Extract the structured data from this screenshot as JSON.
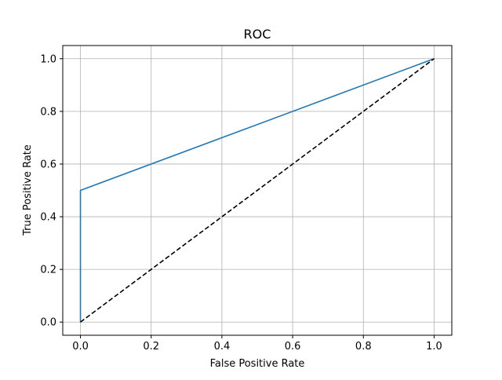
{
  "chart_data": {
    "type": "line",
    "title": "ROC",
    "xlabel": "False Positive Rate",
    "ylabel": "True Positive Rate",
    "xlim": [
      -0.05,
      1.05
    ],
    "ylim": [
      -0.05,
      1.05
    ],
    "xticks": [
      0.0,
      0.2,
      0.4,
      0.6,
      0.8,
      1.0
    ],
    "yticks": [
      0.0,
      0.2,
      0.4,
      0.6,
      0.8,
      1.0
    ],
    "xtick_labels": [
      "0.0",
      "0.2",
      "0.4",
      "0.6",
      "0.8",
      "1.0"
    ],
    "ytick_labels": [
      "0.0",
      "0.2",
      "0.4",
      "0.6",
      "0.8",
      "1.0"
    ],
    "grid": true,
    "series": [
      {
        "x": [
          0.0,
          0.0,
          1.0
        ],
        "y": [
          0.0,
          0.5,
          1.0
        ],
        "color": "#1f77b4",
        "style": "solid"
      },
      {
        "x": [
          0.0,
          1.0
        ],
        "y": [
          0.0,
          1.0
        ],
        "color": "#000000",
        "style": "dashed"
      }
    ]
  }
}
